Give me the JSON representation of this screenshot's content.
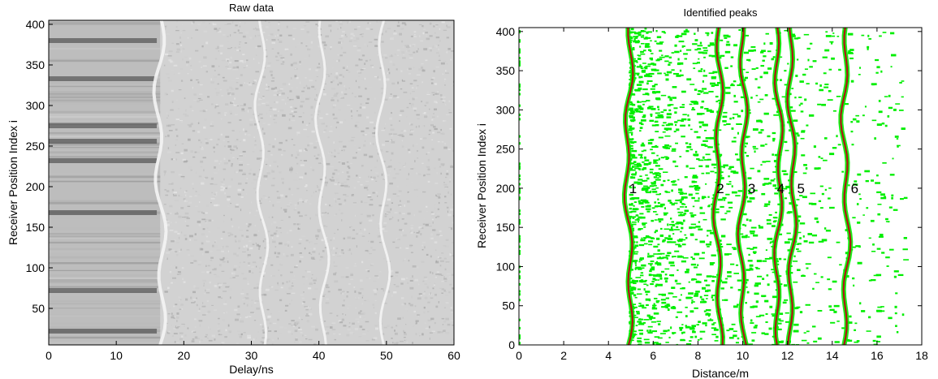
{
  "chart_data": [
    {
      "type": "heatmap",
      "title": "Raw data",
      "xlabel": "Delay/ns",
      "ylabel": "Receiver Position Index i",
      "xlim": [
        0,
        60
      ],
      "ylim": [
        5,
        405
      ],
      "xticks": [
        "0",
        "10",
        "20",
        "30",
        "40",
        "50",
        "60"
      ],
      "yticks": [
        "50",
        "100",
        "150",
        "200",
        "250",
        "300",
        "350",
        "400"
      ],
      "colormap": "grayscale",
      "dark_band_positions": [
        22,
        72,
        168,
        232,
        256,
        275,
        333,
        380
      ],
      "bright_wavefronts_ns": [
        16.5,
        31.5,
        40.5,
        49.5
      ]
    },
    {
      "type": "scatter",
      "title": "Identified peaks",
      "xlabel": "Distance/m",
      "ylabel": "Receiver Position Index i",
      "xlim": [
        0,
        18
      ],
      "ylim": [
        0,
        405
      ],
      "xticks": [
        "0",
        "2",
        "4",
        "6",
        "8",
        "10",
        "12",
        "14",
        "16",
        "18"
      ],
      "yticks": [
        "0",
        "50",
        "100",
        "150",
        "200",
        "250",
        "300",
        "350",
        "400"
      ],
      "point_color": "#00ee00",
      "line_color": "#b01414",
      "peaks": [
        {
          "label": "1",
          "distance_m": 4.9,
          "label_x": 5.1
        },
        {
          "label": "2",
          "distance_m": 8.9,
          "label_x": 9.0
        },
        {
          "label": "3",
          "distance_m": 10.0,
          "label_x": 10.4
        },
        {
          "label": "4",
          "distance_m": 11.6,
          "label_x": 11.7
        },
        {
          "label": "5",
          "distance_m": 12.2,
          "label_x": 12.6
        },
        {
          "label": "6",
          "distance_m": 14.6,
          "label_x": 15.0
        }
      ],
      "peak_label_index": 200
    }
  ],
  "colors": {
    "point_green": "#00ee00",
    "peak_red": "#b01414",
    "axis_black": "#000000"
  }
}
